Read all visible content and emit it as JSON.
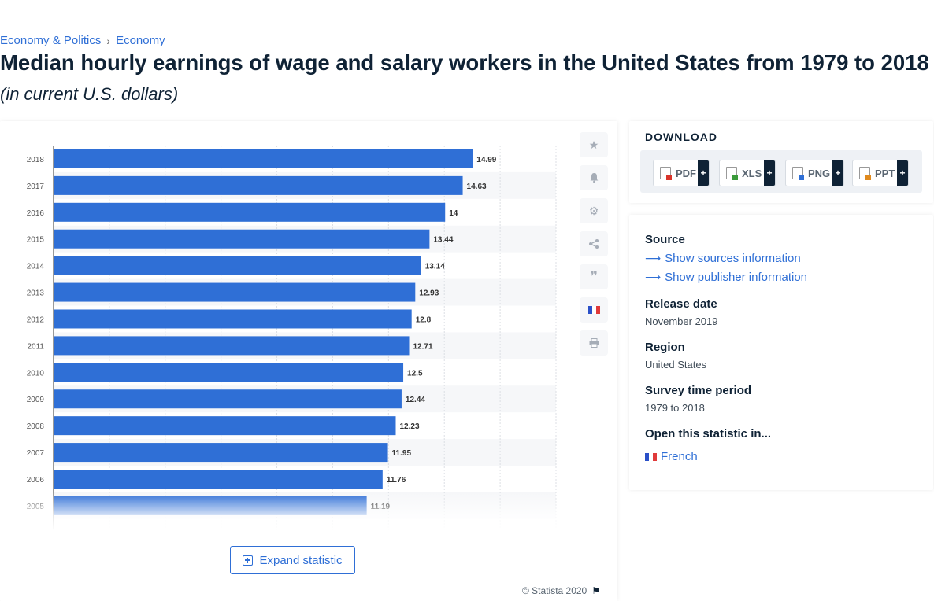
{
  "breadcrumb": {
    "item1": "Economy & Politics",
    "separator": "›",
    "item2": "Economy"
  },
  "title": "Median hourly earnings of wage and salary workers in the United States from 1979 to 2018",
  "subtitle": "(in current U.S. dollars)",
  "toolbar": {
    "icons": [
      "star-icon",
      "bell-icon",
      "gear-icon",
      "share-icon",
      "quote-icon",
      "flag-fr-icon",
      "print-icon"
    ]
  },
  "expand_label": "Expand statistic",
  "copyright": "© Statista 2020",
  "download": {
    "title": "DOWNLOAD",
    "buttons": [
      {
        "label": "PDF",
        "plus": "+",
        "color": "#d9342b"
      },
      {
        "label": "XLS",
        "plus": "+",
        "color": "#3b9b3b"
      },
      {
        "label": "PNG",
        "plus": "+",
        "color": "#2f6fd6"
      },
      {
        "label": "PPT",
        "plus": "+",
        "color": "#e08a1e"
      }
    ]
  },
  "info": {
    "source_heading": "Source",
    "show_sources": "Show sources information",
    "show_publisher": "Show publisher information",
    "release_heading": "Release date",
    "release_value": "November 2019",
    "region_heading": "Region",
    "region_value": "United States",
    "survey_heading": "Survey time period",
    "survey_value": "1979 to 2018",
    "open_heading": "Open this statistic in...",
    "open_link": "French"
  },
  "chart_data": {
    "type": "bar",
    "orientation": "horizontal",
    "categories": [
      "2018",
      "2017",
      "2016",
      "2015",
      "2014",
      "2013",
      "2012",
      "2011",
      "2010",
      "2009",
      "2008",
      "2007",
      "2006",
      "2005"
    ],
    "values": [
      14.99,
      14.63,
      14,
      13.44,
      13.14,
      12.93,
      12.8,
      12.71,
      12.5,
      12.44,
      12.23,
      11.95,
      11.76,
      11.19
    ],
    "value_labels": [
      "14.99",
      "14.63",
      "14",
      "13.44",
      "13.14",
      "12.93",
      "12.8",
      "12.71",
      "12.5",
      "12.44",
      "12.23",
      "11.95",
      "11.76",
      "11.19"
    ],
    "xlim": [
      0,
      18
    ],
    "bar_color": "#2f6fd6",
    "grid": true
  }
}
